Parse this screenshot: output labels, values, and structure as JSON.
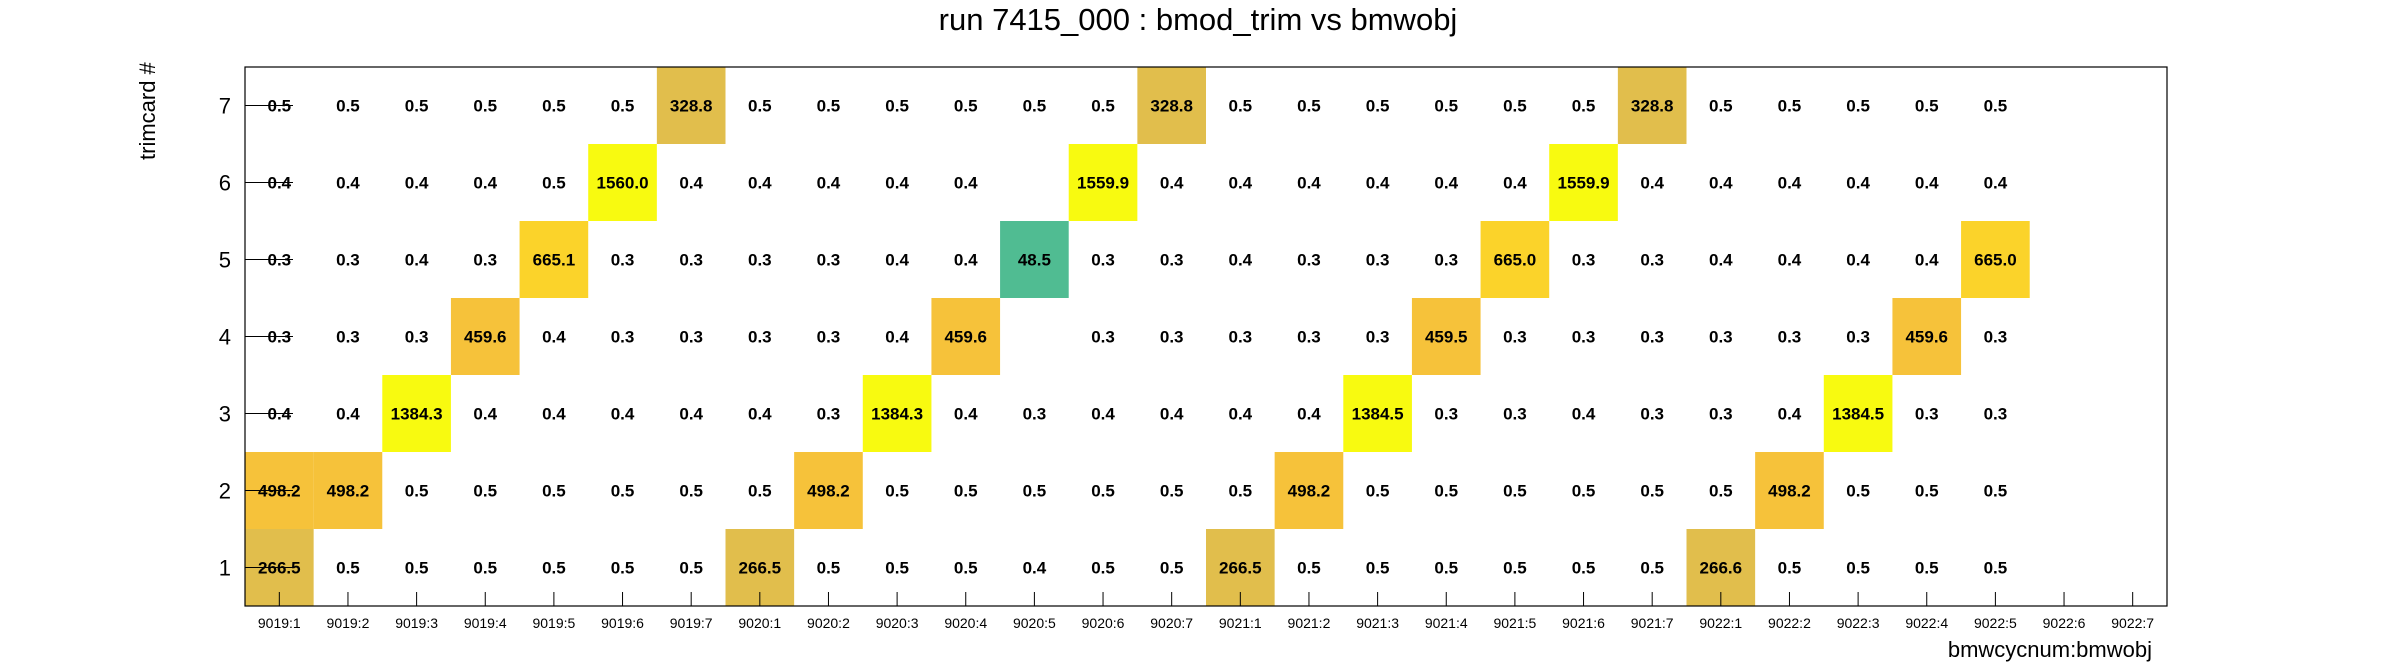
{
  "chart_data": {
    "type": "heatmap",
    "title": "run 7415_000 : bmod_trim vs bmwobj",
    "xlabel": "bmwcycnum:bmwobj",
    "ylabel": "trimcard #",
    "x_categories": [
      "9019:1",
      "9019:2",
      "9019:3",
      "9019:4",
      "9019:5",
      "9019:6",
      "9019:7",
      "9020:1",
      "9020:2",
      "9020:3",
      "9020:4",
      "9020:5",
      "9020:6",
      "9020:7",
      "9021:1",
      "9021:2",
      "9021:3",
      "9021:4",
      "9021:5",
      "9021:6",
      "9021:7",
      "9022:1",
      "9022:2",
      "9022:3",
      "9022:4",
      "9022:5",
      "9022:6",
      "9022:7"
    ],
    "y_categories": [
      "1",
      "2",
      "3",
      "4",
      "5",
      "6",
      "7"
    ],
    "grid": false,
    "values": [
      [
        "266.5",
        "498.2",
        "0.4",
        "0.3",
        "0.3",
        "0.4",
        "0.5"
      ],
      [
        "0.5",
        "498.2",
        "0.4",
        "0.3",
        "0.3",
        "0.4",
        "0.5"
      ],
      [
        "0.5",
        "0.5",
        "1384.3",
        "0.3",
        "0.4",
        "0.4",
        "0.5"
      ],
      [
        "0.5",
        "0.5",
        "0.4",
        "459.6",
        "0.3",
        "0.4",
        "0.5"
      ],
      [
        "0.5",
        "0.5",
        "0.4",
        "0.4",
        "665.1",
        "0.5",
        "0.5"
      ],
      [
        "0.5",
        "0.5",
        "0.4",
        "0.3",
        "0.3",
        "1560.0",
        "0.5"
      ],
      [
        "0.5",
        "0.5",
        "0.4",
        "0.3",
        "0.3",
        "0.4",
        "328.8"
      ],
      [
        "266.5",
        "0.5",
        "0.4",
        "0.3",
        "0.3",
        "0.4",
        "0.5"
      ],
      [
        "0.5",
        "498.2",
        "0.3",
        "0.3",
        "0.3",
        "0.4",
        "0.5"
      ],
      [
        "0.5",
        "0.5",
        "1384.3",
        "0.4",
        "0.4",
        "0.4",
        "0.5"
      ],
      [
        "0.5",
        "0.5",
        "0.4",
        "459.6",
        "0.4",
        "0.4",
        "0.5"
      ],
      [
        "0.4",
        "0.5",
        "0.3",
        null,
        "48.5",
        null,
        "0.5"
      ],
      [
        "0.5",
        "0.5",
        "0.4",
        "0.3",
        "0.3",
        "1559.9",
        "0.5"
      ],
      [
        "0.5",
        "0.5",
        "0.4",
        "0.3",
        "0.3",
        "0.4",
        "328.8"
      ],
      [
        "266.5",
        "0.5",
        "0.4",
        "0.3",
        "0.4",
        "0.4",
        "0.5"
      ],
      [
        "0.5",
        "498.2",
        "0.4",
        "0.3",
        "0.3",
        "0.4",
        "0.5"
      ],
      [
        "0.5",
        "0.5",
        "1384.5",
        "0.3",
        "0.3",
        "0.4",
        "0.5"
      ],
      [
        "0.5",
        "0.5",
        "0.3",
        "459.5",
        "0.3",
        "0.4",
        "0.5"
      ],
      [
        "0.5",
        "0.5",
        "0.3",
        "0.3",
        "665.0",
        "0.4",
        "0.5"
      ],
      [
        "0.5",
        "0.5",
        "0.4",
        "0.3",
        "0.3",
        "1559.9",
        "0.5"
      ],
      [
        "0.5",
        "0.5",
        "0.3",
        "0.3",
        "0.3",
        "0.4",
        "328.8"
      ],
      [
        "266.6",
        "0.5",
        "0.3",
        "0.3",
        "0.4",
        "0.4",
        "0.5"
      ],
      [
        "0.5",
        "498.2",
        "0.4",
        "0.3",
        "0.4",
        "0.4",
        "0.5"
      ],
      [
        "0.5",
        "0.5",
        "1384.5",
        "0.3",
        "0.4",
        "0.4",
        "0.5"
      ],
      [
        "0.5",
        "0.5",
        "0.3",
        "459.6",
        "0.4",
        "0.4",
        "0.5"
      ],
      [
        "0.5",
        "0.5",
        "0.3",
        "0.3",
        "665.0",
        "0.4",
        "0.5"
      ],
      [
        null,
        null,
        null,
        null,
        null,
        null,
        null
      ],
      [
        null,
        null,
        null,
        null,
        null,
        null,
        null
      ]
    ],
    "colors": {
      "teal": "#50bc92",
      "gold": "#e1be4c",
      "amber": "#f6c23a",
      "yellow_orange": "#fbd32a",
      "yellow": "#f8fa10"
    }
  }
}
